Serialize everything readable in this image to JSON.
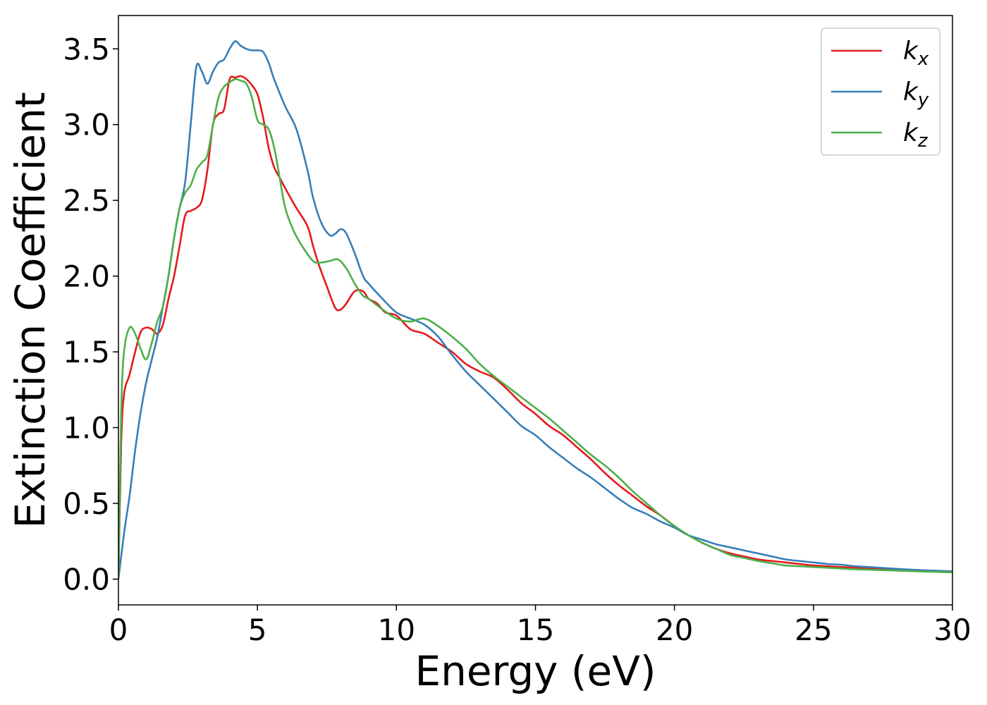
{
  "chart_data": {
    "type": "line",
    "title": "",
    "xlabel": "Energy (eV)",
    "ylabel": "Extinction Coefficient",
    "xlim": [
      0,
      30
    ],
    "ylim": [
      -0.17,
      3.72
    ],
    "xticks": [
      0,
      5,
      10,
      15,
      20,
      25,
      30
    ],
    "xtick_labels": [
      "0",
      "5",
      "10",
      "15",
      "20",
      "25",
      "30"
    ],
    "yticks": [
      0.0,
      0.5,
      1.0,
      1.5,
      2.0,
      2.5,
      3.0,
      3.5
    ],
    "ytick_labels": [
      "0.0",
      "0.5",
      "1.0",
      "1.5",
      "2.0",
      "2.5",
      "3.0",
      "3.5"
    ],
    "grid": false,
    "legend_position": "top-right",
    "series": [
      {
        "name": "k",
        "subscript": "x",
        "color": "#e41a1c",
        "x": [
          0,
          0.1,
          0.2,
          0.4,
          0.6,
          0.8,
          1.0,
          1.2,
          1.4,
          1.6,
          1.8,
          2.0,
          2.2,
          2.4,
          2.6,
          2.8,
          3.0,
          3.2,
          3.4,
          3.6,
          3.8,
          4.0,
          4.2,
          4.4,
          4.6,
          4.8,
          5.0,
          5.2,
          5.4,
          5.6,
          5.8,
          6.0,
          6.4,
          6.8,
          7.0,
          7.2,
          7.5,
          7.8,
          8.0,
          8.2,
          8.5,
          8.8,
          9.0,
          9.3,
          9.6,
          10.0,
          10.5,
          11.0,
          11.5,
          12.0,
          12.5,
          13.0,
          13.5,
          14.0,
          14.5,
          15.0,
          15.5,
          16.0,
          16.5,
          17.0,
          17.5,
          18.0,
          18.5,
          19.0,
          19.5,
          20.0,
          20.5,
          21.0,
          21.5,
          22.0,
          22.5,
          23.0,
          23.5,
          24.0,
          24.5,
          25.0,
          25.5,
          26.0,
          26.5,
          27.0,
          28.0,
          29.0,
          30.0
        ],
        "y": [
          0.0,
          0.9,
          1.22,
          1.35,
          1.5,
          1.63,
          1.66,
          1.65,
          1.62,
          1.68,
          1.85,
          2.0,
          2.2,
          2.4,
          2.43,
          2.45,
          2.5,
          2.7,
          3.0,
          3.07,
          3.1,
          3.3,
          3.31,
          3.32,
          3.3,
          3.26,
          3.2,
          3.05,
          2.85,
          2.72,
          2.65,
          2.58,
          2.45,
          2.33,
          2.2,
          2.08,
          1.93,
          1.79,
          1.78,
          1.82,
          1.9,
          1.9,
          1.85,
          1.82,
          1.76,
          1.74,
          1.65,
          1.62,
          1.56,
          1.5,
          1.42,
          1.37,
          1.33,
          1.25,
          1.16,
          1.09,
          1.01,
          0.95,
          0.87,
          0.79,
          0.7,
          0.62,
          0.55,
          0.48,
          0.42,
          0.35,
          0.29,
          0.24,
          0.2,
          0.17,
          0.15,
          0.13,
          0.12,
          0.11,
          0.1,
          0.09,
          0.085,
          0.08,
          0.075,
          0.07,
          0.065,
          0.058,
          0.05
        ]
      },
      {
        "name": "k",
        "subscript": "y",
        "color": "#377eb8",
        "x": [
          0,
          0.2,
          0.4,
          0.6,
          0.8,
          1.0,
          1.2,
          1.4,
          1.6,
          1.8,
          2.0,
          2.2,
          2.4,
          2.6,
          2.8,
          3.0,
          3.2,
          3.4,
          3.6,
          3.8,
          4.0,
          4.2,
          4.4,
          4.6,
          4.8,
          5.0,
          5.2,
          5.4,
          5.6,
          6.0,
          6.4,
          6.8,
          7.0,
          7.3,
          7.6,
          7.8,
          8.0,
          8.2,
          8.5,
          8.8,
          9.0,
          9.5,
          10.0,
          10.5,
          11.0,
          11.5,
          12.0,
          12.5,
          13.0,
          13.5,
          14.0,
          14.5,
          15.0,
          15.5,
          16.0,
          16.5,
          17.0,
          17.5,
          18.0,
          18.5,
          19.0,
          19.5,
          20.0,
          20.5,
          21.0,
          21.5,
          22.0,
          22.5,
          23.0,
          23.5,
          24.0,
          24.5,
          25.0,
          25.5,
          26.0,
          26.5,
          27.0,
          28.0,
          29.0,
          30.0
        ],
        "y": [
          0.0,
          0.3,
          0.55,
          0.85,
          1.1,
          1.3,
          1.45,
          1.6,
          1.8,
          2.0,
          2.25,
          2.45,
          2.62,
          3.0,
          3.38,
          3.35,
          3.27,
          3.35,
          3.41,
          3.43,
          3.5,
          3.55,
          3.52,
          3.5,
          3.49,
          3.49,
          3.48,
          3.41,
          3.3,
          3.12,
          2.97,
          2.7,
          2.52,
          2.35,
          2.27,
          2.28,
          2.31,
          2.28,
          2.15,
          2.0,
          1.95,
          1.85,
          1.76,
          1.72,
          1.68,
          1.6,
          1.48,
          1.37,
          1.28,
          1.19,
          1.1,
          1.01,
          0.95,
          0.87,
          0.8,
          0.73,
          0.67,
          0.6,
          0.53,
          0.47,
          0.43,
          0.38,
          0.34,
          0.29,
          0.26,
          0.23,
          0.21,
          0.19,
          0.17,
          0.15,
          0.13,
          0.12,
          0.11,
          0.1,
          0.095,
          0.085,
          0.08,
          0.068,
          0.058,
          0.052
        ]
      },
      {
        "name": "k",
        "subscript": "z",
        "color": "#4daf4a",
        "x": [
          0,
          0.1,
          0.2,
          0.4,
          0.6,
          0.8,
          1.0,
          1.2,
          1.4,
          1.6,
          1.8,
          2.0,
          2.2,
          2.4,
          2.6,
          2.8,
          3.0,
          3.2,
          3.4,
          3.6,
          3.8,
          4.0,
          4.2,
          4.4,
          4.6,
          4.8,
          5.0,
          5.2,
          5.4,
          5.6,
          5.8,
          6.0,
          6.3,
          6.6,
          7.0,
          7.3,
          7.6,
          7.9,
          8.2,
          8.5,
          8.8,
          9.0,
          9.5,
          10.0,
          10.5,
          11.0,
          11.5,
          12.0,
          12.5,
          13.0,
          13.5,
          14.0,
          14.5,
          15.0,
          15.5,
          16.0,
          16.5,
          17.0,
          17.5,
          18.0,
          18.5,
          19.0,
          19.5,
          20.0,
          20.5,
          21.0,
          21.5,
          22.0,
          22.5,
          23.0,
          23.5,
          24.0,
          24.5,
          25.0,
          25.5,
          26.0,
          26.5,
          27.0,
          28.0,
          29.0,
          30.0
        ],
        "y": [
          0.0,
          1.1,
          1.5,
          1.66,
          1.62,
          1.52,
          1.45,
          1.56,
          1.7,
          1.8,
          2.0,
          2.25,
          2.45,
          2.55,
          2.6,
          2.7,
          2.75,
          2.8,
          3.0,
          3.18,
          3.25,
          3.28,
          3.3,
          3.29,
          3.27,
          3.18,
          3.03,
          3.0,
          2.97,
          2.85,
          2.65,
          2.45,
          2.3,
          2.2,
          2.1,
          2.09,
          2.1,
          2.11,
          2.05,
          1.95,
          1.87,
          1.85,
          1.78,
          1.72,
          1.7,
          1.72,
          1.67,
          1.6,
          1.52,
          1.42,
          1.34,
          1.27,
          1.2,
          1.13,
          1.06,
          0.98,
          0.9,
          0.82,
          0.75,
          0.67,
          0.58,
          0.5,
          0.42,
          0.35,
          0.29,
          0.24,
          0.2,
          0.16,
          0.14,
          0.12,
          0.105,
          0.09,
          0.085,
          0.08,
          0.075,
          0.07,
          0.065,
          0.062,
          0.056,
          0.05,
          0.045
        ]
      }
    ]
  }
}
